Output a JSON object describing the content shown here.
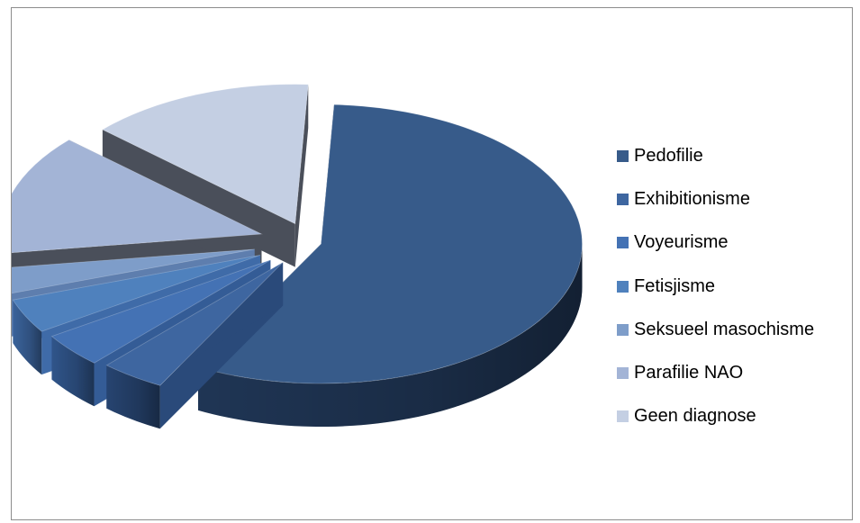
{
  "chart_data": {
    "type": "pie",
    "style": "3d-exploded",
    "title": "",
    "legend_position": "right",
    "categories": [
      "Pedofilie",
      "Exhibitionisme",
      "Voyeurisme",
      "Fetisjisme",
      "Seksueel masochisme",
      "Parafilie NAO",
      "Geen diagnose"
    ],
    "values": [
      57,
      4,
      4,
      4,
      3,
      14,
      14
    ],
    "colors": [
      "#375B8A",
      "#3E66A0",
      "#4472B4",
      "#4F81BD",
      "#7E9DC9",
      "#A3B4D6",
      "#C4CFE3"
    ],
    "side_colors": [
      "#223A5C",
      "#2A4A7A",
      "#345C96",
      "#3F6BA8",
      "#5E7EAE",
      "#4A4F5A",
      "#4A4F5A"
    ]
  }
}
